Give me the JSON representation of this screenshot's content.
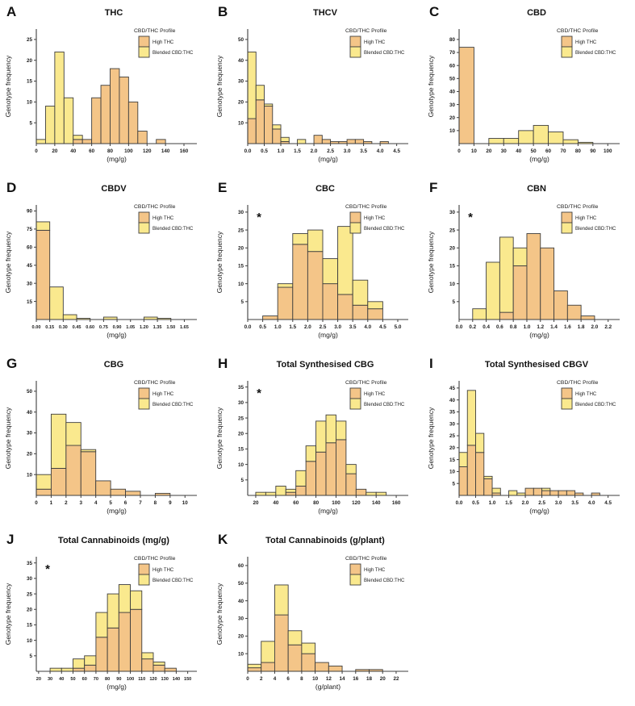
{
  "figure": {
    "background": "#ffffff",
    "bar_stroke": "#3E3E3E",
    "axis_color": "#3E3E3E"
  },
  "legend": {
    "title": "CBD/THC Profile",
    "items": [
      {
        "label": "High THC",
        "color": "#F4C588"
      },
      {
        "label": "Blended CBD:THC",
        "color": "#FAE98E"
      }
    ]
  },
  "chart_data": [
    {
      "letter": "A",
      "title": "THC",
      "type": "bar",
      "stacked": true,
      "xlabel": "(mg/g)",
      "ylabel": "Genotype frequency",
      "asterisk": false,
      "axis": {
        "xmin": 0,
        "xmax": 174,
        "ymax": 27.5,
        "binwidth": 10
      },
      "xticks": {
        "values": [
          0,
          20,
          40,
          60,
          80,
          100,
          120,
          140,
          160
        ],
        "labels": [
          "0",
          "20",
          "40",
          "60",
          "80",
          "100",
          "120",
          "140",
          "160"
        ]
      },
      "yticks": [
        5,
        10,
        15,
        20,
        25
      ],
      "series_names": [
        "High THC",
        "Blended CBD:THC"
      ],
      "bins": [
        [
          0,
          0,
          1
        ],
        [
          10,
          0,
          9
        ],
        [
          20,
          0,
          22
        ],
        [
          30,
          0,
          11
        ],
        [
          40,
          1,
          1
        ],
        [
          50,
          1,
          0
        ],
        [
          60,
          11,
          0
        ],
        [
          70,
          14,
          0
        ],
        [
          80,
          18,
          0
        ],
        [
          90,
          16,
          0
        ],
        [
          100,
          10,
          0
        ],
        [
          110,
          3,
          0
        ],
        [
          130,
          1,
          0
        ]
      ]
    },
    {
      "letter": "B",
      "title": "THCV",
      "type": "bar",
      "stacked": true,
      "xlabel": "(mg/g)",
      "ylabel": "Genotype frequency",
      "asterisk": false,
      "axis": {
        "xmin": 0,
        "xmax": 4.85,
        "ymax": 55,
        "binwidth": 0.25
      },
      "xticks": {
        "values": [
          0,
          0.5,
          1.0,
          1.5,
          2.0,
          2.5,
          3.0,
          3.5,
          4.0,
          4.5
        ],
        "labels": [
          "0.0",
          "0.5",
          "1.0",
          "1.5",
          "2.0",
          "2.5",
          "3.0",
          "3.5",
          "4.0",
          "4.5"
        ]
      },
      "yticks": [
        10,
        20,
        30,
        40,
        50
      ],
      "series_names": [
        "High THC",
        "Blended CBD:THC"
      ],
      "bins": [
        [
          0,
          12,
          32
        ],
        [
          0.25,
          21,
          7
        ],
        [
          0.5,
          18,
          1
        ],
        [
          0.75,
          7,
          2
        ],
        [
          1.0,
          1,
          2
        ],
        [
          1.5,
          0,
          2
        ],
        [
          2.0,
          4,
          0
        ],
        [
          2.25,
          2,
          0
        ],
        [
          2.5,
          1,
          0
        ],
        [
          2.75,
          1,
          0
        ],
        [
          3.0,
          2,
          0
        ],
        [
          3.25,
          2,
          0
        ],
        [
          3.5,
          1,
          0
        ],
        [
          4.0,
          1,
          0
        ]
      ]
    },
    {
      "letter": "C",
      "title": "CBD",
      "type": "bar",
      "stacked": true,
      "xlabel": "(mg/g)",
      "ylabel": "Genotype frequency",
      "asterisk": false,
      "axis": {
        "xmin": 0,
        "xmax": 108,
        "ymax": 88,
        "binwidth": 10
      },
      "xticks": {
        "values": [
          0,
          10,
          20,
          30,
          40,
          50,
          60,
          70,
          80,
          90,
          100
        ],
        "labels": [
          "0",
          "10",
          "20",
          "30",
          "40",
          "50",
          "60",
          "70",
          "80",
          "90",
          "100"
        ]
      },
      "yticks": [
        10,
        20,
        30,
        40,
        50,
        60,
        70,
        80
      ],
      "series_names": [
        "High THC",
        "Blended CBD:THC"
      ],
      "bins": [
        [
          0,
          74,
          0
        ],
        [
          20,
          0,
          4
        ],
        [
          30,
          0,
          4
        ],
        [
          40,
          0,
          10
        ],
        [
          50,
          0,
          14
        ],
        [
          60,
          0,
          9
        ],
        [
          70,
          0,
          3
        ],
        [
          80,
          0,
          1
        ]
      ]
    },
    {
      "letter": "D",
      "title": "CBDV",
      "type": "bar",
      "stacked": true,
      "xlabel": "(mg/g)",
      "ylabel": "Genotype frequency",
      "asterisk": false,
      "tick_font": 5.6,
      "axis": {
        "xmin": 0,
        "xmax": 1.79,
        "ymax": 95,
        "binwidth": 0.15
      },
      "xticks": {
        "values": [
          0,
          0.15,
          0.3,
          0.45,
          0.6,
          0.75,
          0.9,
          1.05,
          1.2,
          1.35,
          1.5,
          1.65
        ],
        "labels": [
          "0.00",
          "0.15",
          "0.30",
          "0.45",
          "0.60",
          "0.75",
          "0.90",
          "1.05",
          "1.20",
          "1.35",
          "1.50",
          "1.65"
        ]
      },
      "yticks": [
        15,
        30,
        45,
        60,
        75,
        90
      ],
      "series_names": [
        "High THC",
        "Blended CBD:THC"
      ],
      "bins": [
        [
          0,
          74,
          7
        ],
        [
          0.15,
          0,
          27
        ],
        [
          0.3,
          0,
          4
        ],
        [
          0.45,
          0,
          1
        ],
        [
          0.75,
          0,
          2
        ],
        [
          1.2,
          0,
          2
        ],
        [
          1.35,
          0,
          1
        ]
      ]
    },
    {
      "letter": "E",
      "title": "CBC",
      "type": "bar",
      "stacked": true,
      "xlabel": "(mg/g)",
      "ylabel": "Genotype frequency",
      "asterisk": true,
      "axis": {
        "xmin": 0,
        "xmax": 5.35,
        "ymax": 32,
        "binwidth": 0.5
      },
      "xticks": {
        "values": [
          0,
          0.5,
          1.0,
          1.5,
          2.0,
          2.5,
          3.0,
          3.5,
          4.0,
          4.5,
          5.0
        ],
        "labels": [
          "0.0",
          "0.5",
          "1.0",
          "1.5",
          "2.0",
          "2.5",
          "3.0",
          "3.5",
          "4.0",
          "4.5",
          "5.0"
        ]
      },
      "yticks": [
        5,
        10,
        15,
        20,
        25,
        30
      ],
      "series_names": [
        "High THC",
        "Blended CBD:THC"
      ],
      "bins": [
        [
          0.5,
          1,
          0
        ],
        [
          1.0,
          9,
          1
        ],
        [
          1.5,
          21,
          3
        ],
        [
          2.0,
          19,
          6
        ],
        [
          2.5,
          10,
          7
        ],
        [
          3.0,
          7,
          19
        ],
        [
          3.5,
          4,
          7
        ],
        [
          4.0,
          3,
          2
        ]
      ]
    },
    {
      "letter": "F",
      "title": "CBN",
      "type": "bar",
      "stacked": true,
      "xlabel": "(mg/g)",
      "ylabel": "Genotype frequency",
      "asterisk": true,
      "axis": {
        "xmin": 0,
        "xmax": 2.37,
        "ymax": 32,
        "binwidth": 0.2
      },
      "xticks": {
        "values": [
          0,
          0.2,
          0.4,
          0.6,
          0.8,
          1.0,
          1.2,
          1.4,
          1.6,
          1.8,
          2.0,
          2.2
        ],
        "labels": [
          "0.0",
          "0.2",
          "0.4",
          "0.6",
          "0.8",
          "1.0",
          "1.2",
          "1.4",
          "1.6",
          "1.8",
          "2.0",
          "2.2"
        ]
      },
      "yticks": [
        5,
        10,
        15,
        20,
        25,
        30
      ],
      "series_names": [
        "High THC",
        "Blended CBD:THC"
      ],
      "bins": [
        [
          0.2,
          0,
          3
        ],
        [
          0.4,
          0,
          16
        ],
        [
          0.6,
          2,
          21
        ],
        [
          0.8,
          15,
          5
        ],
        [
          1.0,
          24,
          0
        ],
        [
          1.2,
          20,
          0
        ],
        [
          1.4,
          8,
          0
        ],
        [
          1.6,
          4,
          0
        ],
        [
          1.8,
          1,
          0
        ]
      ]
    },
    {
      "letter": "G",
      "title": "CBG",
      "type": "bar",
      "stacked": true,
      "xlabel": "(mg/g)",
      "ylabel": "Genotype frequency",
      "asterisk": false,
      "axis": {
        "xmin": 0,
        "xmax": 10.8,
        "ymax": 55,
        "binwidth": 1
      },
      "xticks": {
        "values": [
          0,
          1,
          2,
          3,
          4,
          5,
          6,
          7,
          8,
          9,
          10
        ],
        "labels": [
          "0",
          "1",
          "2",
          "3",
          "4",
          "5",
          "6",
          "7",
          "8",
          "9",
          "10"
        ]
      },
      "yticks": [
        10,
        20,
        30,
        40,
        50
      ],
      "series_names": [
        "High THC",
        "Blended CBD:THC"
      ],
      "bins": [
        [
          0,
          3,
          7
        ],
        [
          1,
          13,
          26
        ],
        [
          2,
          24,
          11
        ],
        [
          3,
          21,
          1
        ],
        [
          4,
          7,
          0
        ],
        [
          5,
          3,
          0
        ],
        [
          6,
          2,
          0
        ],
        [
          8,
          1,
          0
        ]
      ]
    },
    {
      "letter": "H",
      "title": "Total Synthesised CBG",
      "type": "bar",
      "stacked": true,
      "xlabel": "(mg/g)",
      "ylabel": "Genotype frequency",
      "asterisk": true,
      "axis": {
        "xmin": 12,
        "xmax": 172,
        "ymax": 37,
        "binwidth": 10
      },
      "xticks": {
        "values": [
          20,
          40,
          60,
          80,
          100,
          120,
          140,
          160
        ],
        "labels": [
          "20",
          "40",
          "60",
          "80",
          "100",
          "120",
          "140",
          "160"
        ]
      },
      "yticks": [
        5,
        10,
        15,
        20,
        25,
        30,
        35
      ],
      "series_names": [
        "High THC",
        "Blended CBD:THC"
      ],
      "bins": [
        [
          20,
          0,
          1
        ],
        [
          30,
          0,
          1
        ],
        [
          40,
          0,
          3
        ],
        [
          50,
          1,
          1
        ],
        [
          60,
          3,
          5
        ],
        [
          70,
          11,
          5
        ],
        [
          80,
          14,
          10
        ],
        [
          90,
          17,
          9
        ],
        [
          100,
          18,
          6
        ],
        [
          110,
          7,
          3
        ],
        [
          120,
          2,
          0
        ],
        [
          130,
          0,
          1
        ],
        [
          140,
          0,
          1
        ]
      ]
    },
    {
      "letter": "I",
      "title": "Total Synthesised CBGV",
      "type": "bar",
      "stacked": true,
      "xlabel": "(mg/g)",
      "ylabel": "Genotype frequency",
      "asterisk": false,
      "axis": {
        "xmin": 0,
        "xmax": 4.85,
        "ymax": 48,
        "binwidth": 0.25
      },
      "xticks": {
        "values": [
          0,
          0.5,
          1.0,
          1.5,
          2.0,
          2.5,
          3.0,
          3.5,
          4.0,
          4.5
        ],
        "labels": [
          "0.0",
          "0.5",
          "1.0",
          "1.5",
          "2.0",
          "2.5",
          "3.0",
          "3.5",
          "4.0",
          "4.5"
        ]
      },
      "yticks": [
        5,
        10,
        15,
        20,
        25,
        30,
        35,
        40,
        45
      ],
      "series_names": [
        "High THC",
        "Blended CBD:THC"
      ],
      "bins": [
        [
          0,
          12,
          6
        ],
        [
          0.25,
          21,
          23
        ],
        [
          0.5,
          18,
          8
        ],
        [
          0.75,
          7,
          1
        ],
        [
          1.0,
          1,
          2
        ],
        [
          1.5,
          0,
          2
        ],
        [
          1.75,
          0,
          1
        ],
        [
          2.0,
          3,
          0
        ],
        [
          2.25,
          3,
          0
        ],
        [
          2.5,
          2,
          1
        ],
        [
          2.75,
          2,
          0
        ],
        [
          3.0,
          2,
          0
        ],
        [
          3.25,
          2,
          0
        ],
        [
          3.5,
          1,
          0
        ],
        [
          4.0,
          1,
          0
        ]
      ]
    },
    {
      "letter": "J",
      "title": "Total Cannabinoids (mg/g)",
      "type": "bar",
      "stacked": true,
      "xlabel": "(mg/g)",
      "ylabel": "Genotype frequency",
      "asterisk": true,
      "tick_font": 5.6,
      "axis": {
        "xmin": 18,
        "xmax": 158,
        "ymax": 37,
        "binwidth": 10
      },
      "xticks": {
        "values": [
          20,
          30,
          40,
          50,
          60,
          70,
          80,
          90,
          100,
          110,
          120,
          130,
          140,
          150
        ],
        "labels": [
          "20",
          "30",
          "40",
          "50",
          "60",
          "70",
          "80",
          "90",
          "100",
          "110",
          "120",
          "130",
          "140",
          "150"
        ]
      },
      "yticks": [
        5,
        10,
        15,
        20,
        25,
        30,
        35
      ],
      "series_names": [
        "High THC",
        "Blended CBD:THC"
      ],
      "bins": [
        [
          30,
          0,
          1
        ],
        [
          40,
          0,
          1
        ],
        [
          50,
          1,
          3
        ],
        [
          60,
          2,
          3
        ],
        [
          70,
          11,
          8
        ],
        [
          80,
          14,
          11
        ],
        [
          90,
          19,
          9
        ],
        [
          100,
          20,
          6
        ],
        [
          110,
          4,
          2
        ],
        [
          120,
          2,
          1
        ],
        [
          130,
          1,
          0
        ]
      ]
    },
    {
      "letter": "K",
      "title": "Total Cannabinoids (g/plant)",
      "type": "bar",
      "stacked": true,
      "xlabel": "(g/plant)",
      "ylabel": "Genotype frequency",
      "asterisk": false,
      "axis": {
        "xmin": 0,
        "xmax": 23.8,
        "ymax": 65,
        "binwidth": 2
      },
      "xticks": {
        "values": [
          0,
          2,
          4,
          6,
          8,
          10,
          12,
          14,
          16,
          18,
          20,
          22
        ],
        "labels": [
          "0",
          "2",
          "4",
          "6",
          "8",
          "10",
          "12",
          "14",
          "16",
          "18",
          "20",
          "22"
        ]
      },
      "yticks": [
        10,
        20,
        30,
        40,
        50,
        60
      ],
      "series_names": [
        "High THC",
        "Blended CBD:THC"
      ],
      "bins": [
        [
          0,
          2,
          2
        ],
        [
          2,
          5,
          12
        ],
        [
          4,
          32,
          17
        ],
        [
          6,
          15,
          8
        ],
        [
          8,
          10,
          6
        ],
        [
          10,
          5,
          0
        ],
        [
          12,
          3,
          0
        ],
        [
          16,
          1,
          0
        ],
        [
          18,
          1,
          0
        ]
      ]
    }
  ]
}
